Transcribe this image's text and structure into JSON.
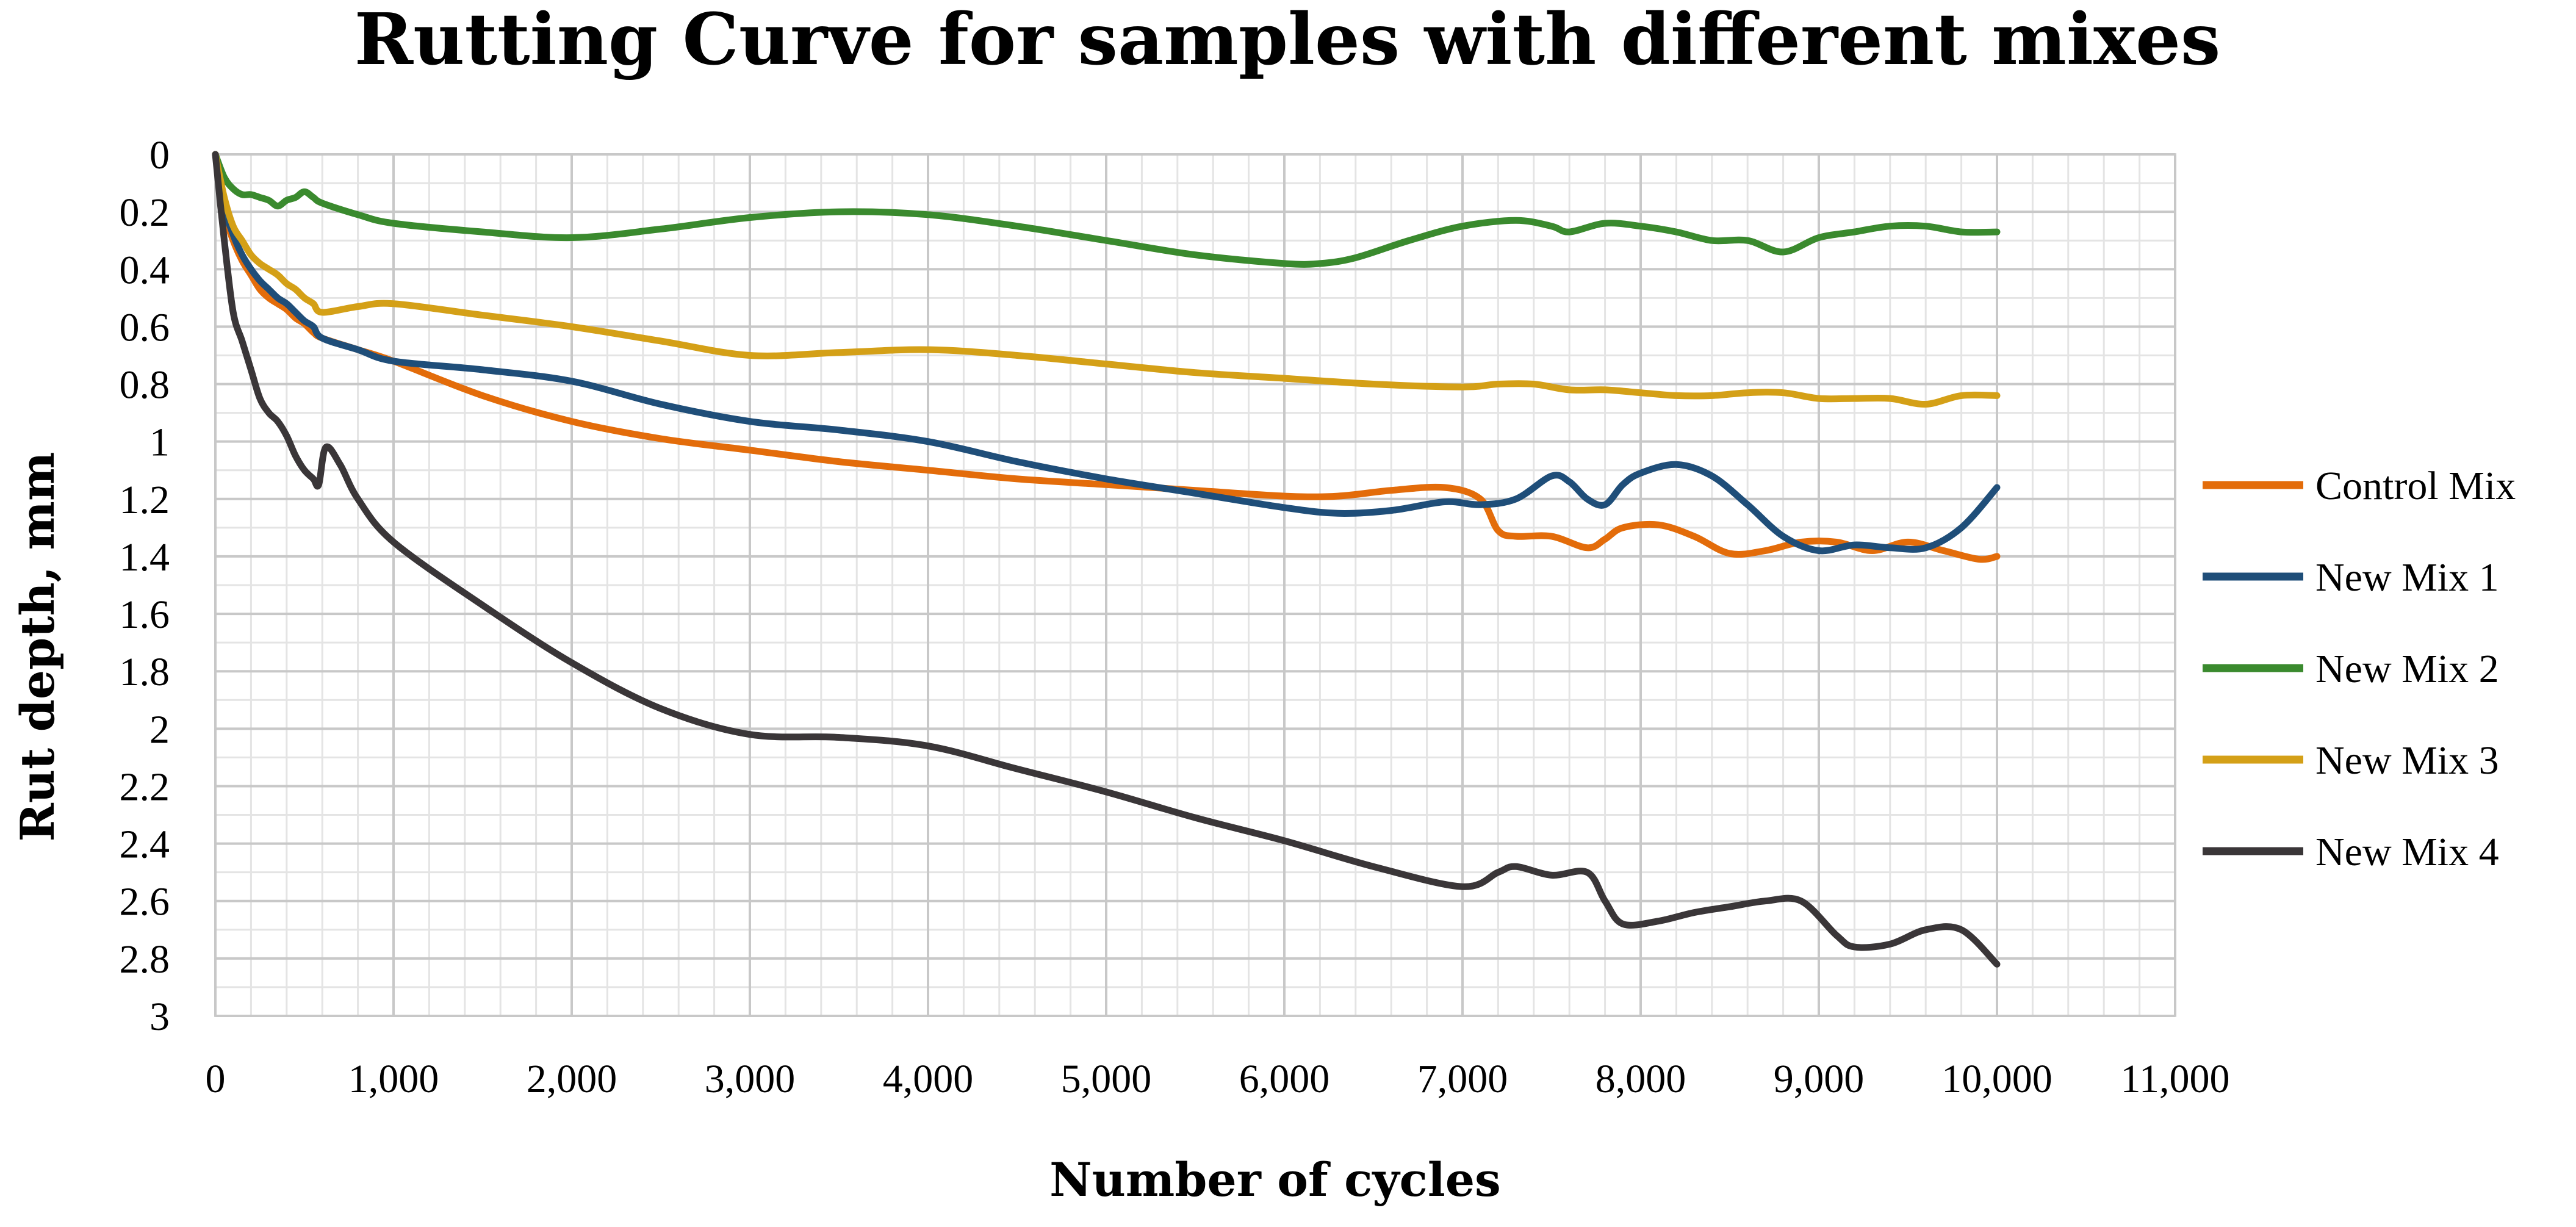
{
  "chart_data": {
    "type": "line",
    "title": "Rutting Curve for samples with different mixes",
    "xlabel": "Number of cycles",
    "ylabel": "Rut depth, mm",
    "xlim": [
      0,
      11000
    ],
    "ylim": [
      0,
      3
    ],
    "y_inverted": true,
    "x_ticks": [
      0,
      1000,
      2000,
      3000,
      4000,
      5000,
      6000,
      7000,
      8000,
      9000,
      10000,
      11000
    ],
    "x_tick_labels": [
      "0",
      "1,000",
      "2,000",
      "3,000",
      "4,000",
      "5,000",
      "6,000",
      "7,000",
      "8,000",
      "9,000",
      "10,000",
      "11,000"
    ],
    "y_ticks": [
      0,
      0.2,
      0.4,
      0.6,
      0.8,
      1,
      1.2,
      1.4,
      1.6,
      1.8,
      2,
      2.2,
      2.4,
      2.6,
      2.8,
      3
    ],
    "y_tick_labels": [
      "0",
      "0.2",
      "0.4",
      "0.6",
      "0.8",
      "1",
      "1.2",
      "1.4",
      "1.6",
      "1.8",
      "2",
      "2.2",
      "2.4",
      "2.6",
      "2.8",
      "3"
    ],
    "x_minor_step": 200,
    "y_minor_step": 0.1,
    "grid": true,
    "legend_position": "right",
    "series": [
      {
        "name": "Control Mix",
        "color": "#E36C0A",
        "x": [
          0,
          50,
          100,
          150,
          200,
          250,
          300,
          350,
          400,
          450,
          500,
          550,
          600,
          800,
          1000,
          1500,
          2000,
          2500,
          3000,
          3500,
          4000,
          4500,
          5000,
          5500,
          6000,
          6300,
          6600,
          6900,
          7100,
          7200,
          7300,
          7500,
          7700,
          7800,
          7900,
          8100,
          8300,
          8500,
          8700,
          8900,
          9100,
          9300,
          9500,
          9700,
          9900,
          10000
        ],
        "values": [
          0,
          0.2,
          0.3,
          0.37,
          0.42,
          0.47,
          0.5,
          0.52,
          0.54,
          0.57,
          0.59,
          0.62,
          0.64,
          0.68,
          0.72,
          0.84,
          0.93,
          0.99,
          1.03,
          1.07,
          1.1,
          1.13,
          1.15,
          1.17,
          1.19,
          1.19,
          1.17,
          1.16,
          1.2,
          1.31,
          1.33,
          1.33,
          1.37,
          1.34,
          1.3,
          1.29,
          1.33,
          1.39,
          1.38,
          1.35,
          1.35,
          1.38,
          1.35,
          1.38,
          1.41,
          1.4
        ]
      },
      {
        "name": "New Mix 1",
        "color": "#1F4E79",
        "x": [
          0,
          50,
          100,
          150,
          200,
          250,
          300,
          350,
          400,
          450,
          500,
          550,
          600,
          800,
          1000,
          1500,
          2000,
          2500,
          3000,
          3500,
          4000,
          4500,
          5000,
          5500,
          6000,
          6300,
          6600,
          6900,
          7100,
          7300,
          7500,
          7600,
          7700,
          7800,
          7900,
          8000,
          8200,
          8400,
          8600,
          8800,
          9000,
          9200,
          9400,
          9600,
          9800,
          10000
        ],
        "values": [
          0,
          0.18,
          0.28,
          0.35,
          0.4,
          0.44,
          0.47,
          0.5,
          0.52,
          0.55,
          0.58,
          0.6,
          0.64,
          0.68,
          0.72,
          0.75,
          0.79,
          0.87,
          0.93,
          0.96,
          1.0,
          1.07,
          1.13,
          1.18,
          1.23,
          1.25,
          1.24,
          1.21,
          1.22,
          1.2,
          1.12,
          1.14,
          1.2,
          1.22,
          1.15,
          1.11,
          1.08,
          1.12,
          1.22,
          1.33,
          1.38,
          1.36,
          1.37,
          1.37,
          1.3,
          1.16
        ]
      },
      {
        "name": "New Mix 2",
        "color": "#3A8A2E",
        "x": [
          0,
          50,
          100,
          150,
          200,
          250,
          300,
          350,
          400,
          450,
          500,
          550,
          600,
          800,
          1000,
          1500,
          2000,
          2500,
          3000,
          3500,
          4000,
          4500,
          5000,
          5500,
          6000,
          6200,
          6400,
          6700,
          7000,
          7300,
          7500,
          7600,
          7800,
          8000,
          8200,
          8400,
          8600,
          8800,
          9000,
          9200,
          9400,
          9600,
          9800,
          10000
        ],
        "values": [
          0,
          0.08,
          0.12,
          0.14,
          0.14,
          0.15,
          0.16,
          0.18,
          0.16,
          0.15,
          0.13,
          0.15,
          0.17,
          0.21,
          0.24,
          0.27,
          0.29,
          0.26,
          0.22,
          0.2,
          0.21,
          0.25,
          0.3,
          0.35,
          0.38,
          0.38,
          0.36,
          0.3,
          0.25,
          0.23,
          0.25,
          0.27,
          0.24,
          0.25,
          0.27,
          0.3,
          0.3,
          0.34,
          0.29,
          0.27,
          0.25,
          0.25,
          0.27,
          0.27
        ]
      },
      {
        "name": "New Mix 3",
        "color": "#D4A017",
        "x": [
          0,
          50,
          100,
          150,
          200,
          250,
          300,
          350,
          400,
          450,
          500,
          550,
          600,
          800,
          1000,
          1500,
          2000,
          2500,
          3000,
          3500,
          4000,
          4500,
          5000,
          5500,
          6000,
          6500,
          7000,
          7200,
          7400,
          7600,
          7800,
          8000,
          8200,
          8400,
          8600,
          8800,
          9000,
          9200,
          9400,
          9600,
          9800,
          10000
        ],
        "values": [
          0,
          0.15,
          0.25,
          0.3,
          0.35,
          0.38,
          0.4,
          0.42,
          0.45,
          0.47,
          0.5,
          0.52,
          0.55,
          0.53,
          0.52,
          0.56,
          0.6,
          0.65,
          0.7,
          0.69,
          0.68,
          0.7,
          0.73,
          0.76,
          0.78,
          0.8,
          0.81,
          0.8,
          0.8,
          0.82,
          0.82,
          0.83,
          0.84,
          0.84,
          0.83,
          0.83,
          0.85,
          0.85,
          0.85,
          0.87,
          0.84,
          0.84
        ]
      },
      {
        "name": "New Mix 4",
        "color": "#3A3638",
        "x": [
          0,
          50,
          100,
          150,
          200,
          250,
          300,
          350,
          400,
          450,
          500,
          550,
          580,
          620,
          700,
          800,
          1000,
          1500,
          2000,
          2500,
          3000,
          3500,
          4000,
          4500,
          5000,
          5500,
          6000,
          6500,
          7000,
          7200,
          7300,
          7500,
          7700,
          7800,
          7900,
          8100,
          8300,
          8500,
          8700,
          8900,
          9100,
          9200,
          9400,
          9600,
          9800,
          10000
        ],
        "values": [
          0,
          0.3,
          0.55,
          0.65,
          0.75,
          0.85,
          0.9,
          0.93,
          0.98,
          1.05,
          1.1,
          1.13,
          1.15,
          1.02,
          1.08,
          1.2,
          1.35,
          1.57,
          1.77,
          1.93,
          2.02,
          2.03,
          2.06,
          2.14,
          2.22,
          2.31,
          2.39,
          2.48,
          2.55,
          2.5,
          2.48,
          2.51,
          2.5,
          2.6,
          2.68,
          2.67,
          2.64,
          2.62,
          2.6,
          2.6,
          2.72,
          2.76,
          2.75,
          2.7,
          2.7,
          2.82
        ]
      }
    ]
  }
}
